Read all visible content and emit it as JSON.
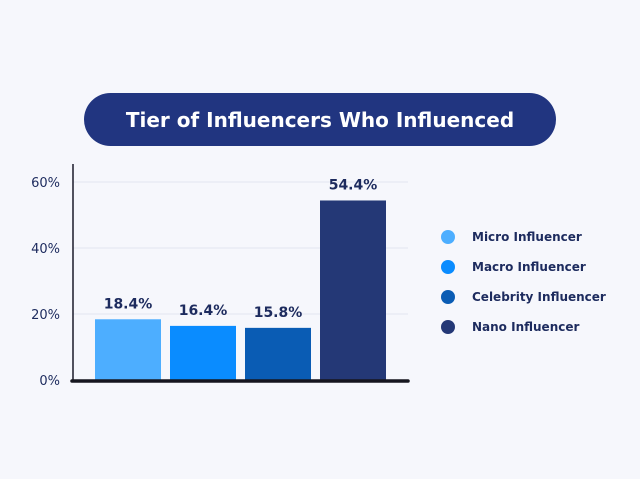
{
  "chart_data": {
    "type": "bar",
    "title": "Tier of Influencers Who Influenced",
    "categories": [
      "Micro Influencer",
      "Macro Influencer",
      "Celebrity Influencer",
      "Nano Influencer"
    ],
    "values": [
      18.4,
      16.4,
      15.8,
      54.4
    ],
    "value_labels": [
      "18.4%",
      "16.4%",
      "15.8%",
      "54.4%"
    ],
    "colors": [
      "#4daeff",
      "#0a8cff",
      "#0a5cb4",
      "#243876"
    ],
    "yticks": [
      0,
      20,
      40,
      60
    ],
    "ytick_labels": [
      "0%",
      "20%",
      "40%",
      "60%"
    ],
    "ylim": [
      0,
      60
    ],
    "xlabel": "",
    "ylabel": "",
    "grid": true,
    "legend_position": "right"
  }
}
